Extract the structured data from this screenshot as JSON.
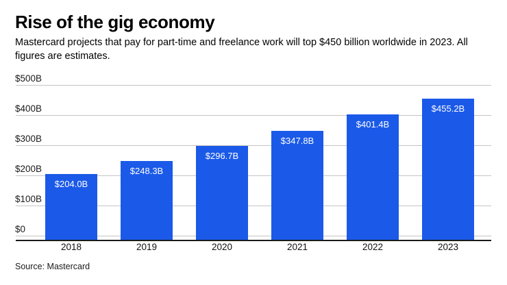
{
  "header": {
    "title": "Rise of the gig economy",
    "subtitle": "Mastercard projects that pay for part-time and freelance work will top $450 billion worldwide in 2023. All figures are estimates."
  },
  "footer": {
    "source": "Source: Mastercard"
  },
  "chart_data": {
    "type": "bar",
    "title": "Rise of the gig economy",
    "categories": [
      "2018",
      "2019",
      "2020",
      "2021",
      "2022",
      "2023"
    ],
    "values": [
      204.0,
      248.3,
      296.7,
      347.8,
      401.4,
      455.2
    ],
    "bar_labels": [
      "$204.0B",
      "$248.3B",
      "$296.7B",
      "$347.8B",
      "$401.4B",
      "$455.2B"
    ],
    "unit": "USD billions",
    "xlabel": "",
    "ylabel": "",
    "ylim": [
      0,
      500
    ],
    "yticks": [
      0,
      100,
      200,
      300,
      400,
      500
    ],
    "ytick_labels": [
      "$0",
      "$100B",
      "$200B",
      "$300B",
      "$400B",
      "$500B"
    ],
    "grid": true,
    "legend": "none",
    "colors": {
      "bar": "#1b5ae8",
      "bar_label": "#ffffff",
      "gridline": "#c4c4c4",
      "axis": "#1a1a1a",
      "text": "#000000"
    }
  }
}
